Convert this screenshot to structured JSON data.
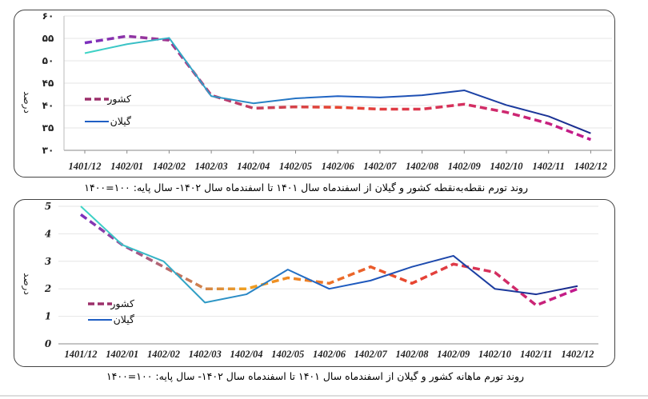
{
  "chart_data": [
    {
      "type": "line",
      "title": "روند تورم نقطه‌به‌نقطه کشور و گیلان  از اسفندماه سال ۱۴۰۱ تا اسفندماه سال ۱۴۰۲- سال پایه: ۱۰۰=۱۴۰۰",
      "ylabel": "درصد",
      "xlabel": "",
      "ylim": [
        30,
        60
      ],
      "yticks": [
        30,
        35,
        40,
        45,
        50,
        55,
        60
      ],
      "ytick_labels": [
        "۳۰",
        "۳۵",
        "۴۰",
        "۴۵",
        "۵۰",
        "۵۵",
        "۶۰"
      ],
      "grid": true,
      "legend_placement": "left-middle",
      "categories": [
        "1401/12",
        "1402/01",
        "1402/02",
        "1402/03",
        "1402/04",
        "1402/05",
        "1402/06",
        "1402/07",
        "1402/08",
        "1402/09",
        "1402/10",
        "1402/11",
        "1402/12"
      ],
      "series": [
        {
          "name": "کشور",
          "style": "dashed",
          "colors": [
            "#7b2fbe",
            "#e8452f",
            "#c0188f"
          ],
          "values": [
            54.0,
            55.5,
            54.6,
            42.3,
            39.4,
            39.7,
            39.6,
            39.2,
            39.2,
            40.3,
            38.5,
            36.0,
            32.4
          ]
        },
        {
          "name": "گیلان",
          "style": "solid",
          "colors": [
            "#3fd6c6",
            "#1f5fc4",
            "#1a2a8c"
          ],
          "values": [
            51.7,
            53.7,
            55.1,
            42.1,
            40.5,
            41.6,
            42.1,
            41.8,
            42.3,
            43.4,
            40.1,
            37.6,
            33.8
          ]
        }
      ]
    },
    {
      "type": "line",
      "title": "روند تورم ماهانه کشور و گیلان  از اسفندماه سال ۱۴۰۱ تا اسفندماه سال ۱۴۰۲- سال پایه: ۱۰۰=۱۴۰۰",
      "ylabel": "درصد",
      "xlabel": "",
      "ylim": [
        0,
        5
      ],
      "yticks": [
        0,
        1,
        2,
        3,
        4,
        5
      ],
      "ytick_labels": [
        "0",
        "1",
        "2",
        "3",
        "4",
        "5"
      ],
      "grid": true,
      "legend_placement": "left-bottom",
      "categories": [
        "1401/12",
        "1402/01",
        "1402/02",
        "1402/03",
        "1402/04",
        "1402/05",
        "1402/06",
        "1402/07",
        "1402/08",
        "1402/09",
        "1402/10",
        "1402/11",
        "1402/12"
      ],
      "series": [
        {
          "name": "کشور",
          "style": "dashed",
          "colors": [
            "#7b2fbe",
            "#f0a020",
            "#e8452f",
            "#c0188f"
          ],
          "values": [
            4.7,
            3.6,
            2.8,
            2.0,
            2.0,
            2.4,
            2.2,
            2.8,
            2.2,
            2.9,
            2.6,
            1.4,
            2.0
          ]
        },
        {
          "name": "گیلان",
          "style": "solid",
          "colors": [
            "#3fd6c6",
            "#1f5fc4",
            "#1a2a8c"
          ],
          "values": [
            5.0,
            3.6,
            3.0,
            1.5,
            1.8,
            2.7,
            2.0,
            2.3,
            2.8,
            3.2,
            2.0,
            1.8,
            2.1
          ]
        }
      ]
    }
  ]
}
